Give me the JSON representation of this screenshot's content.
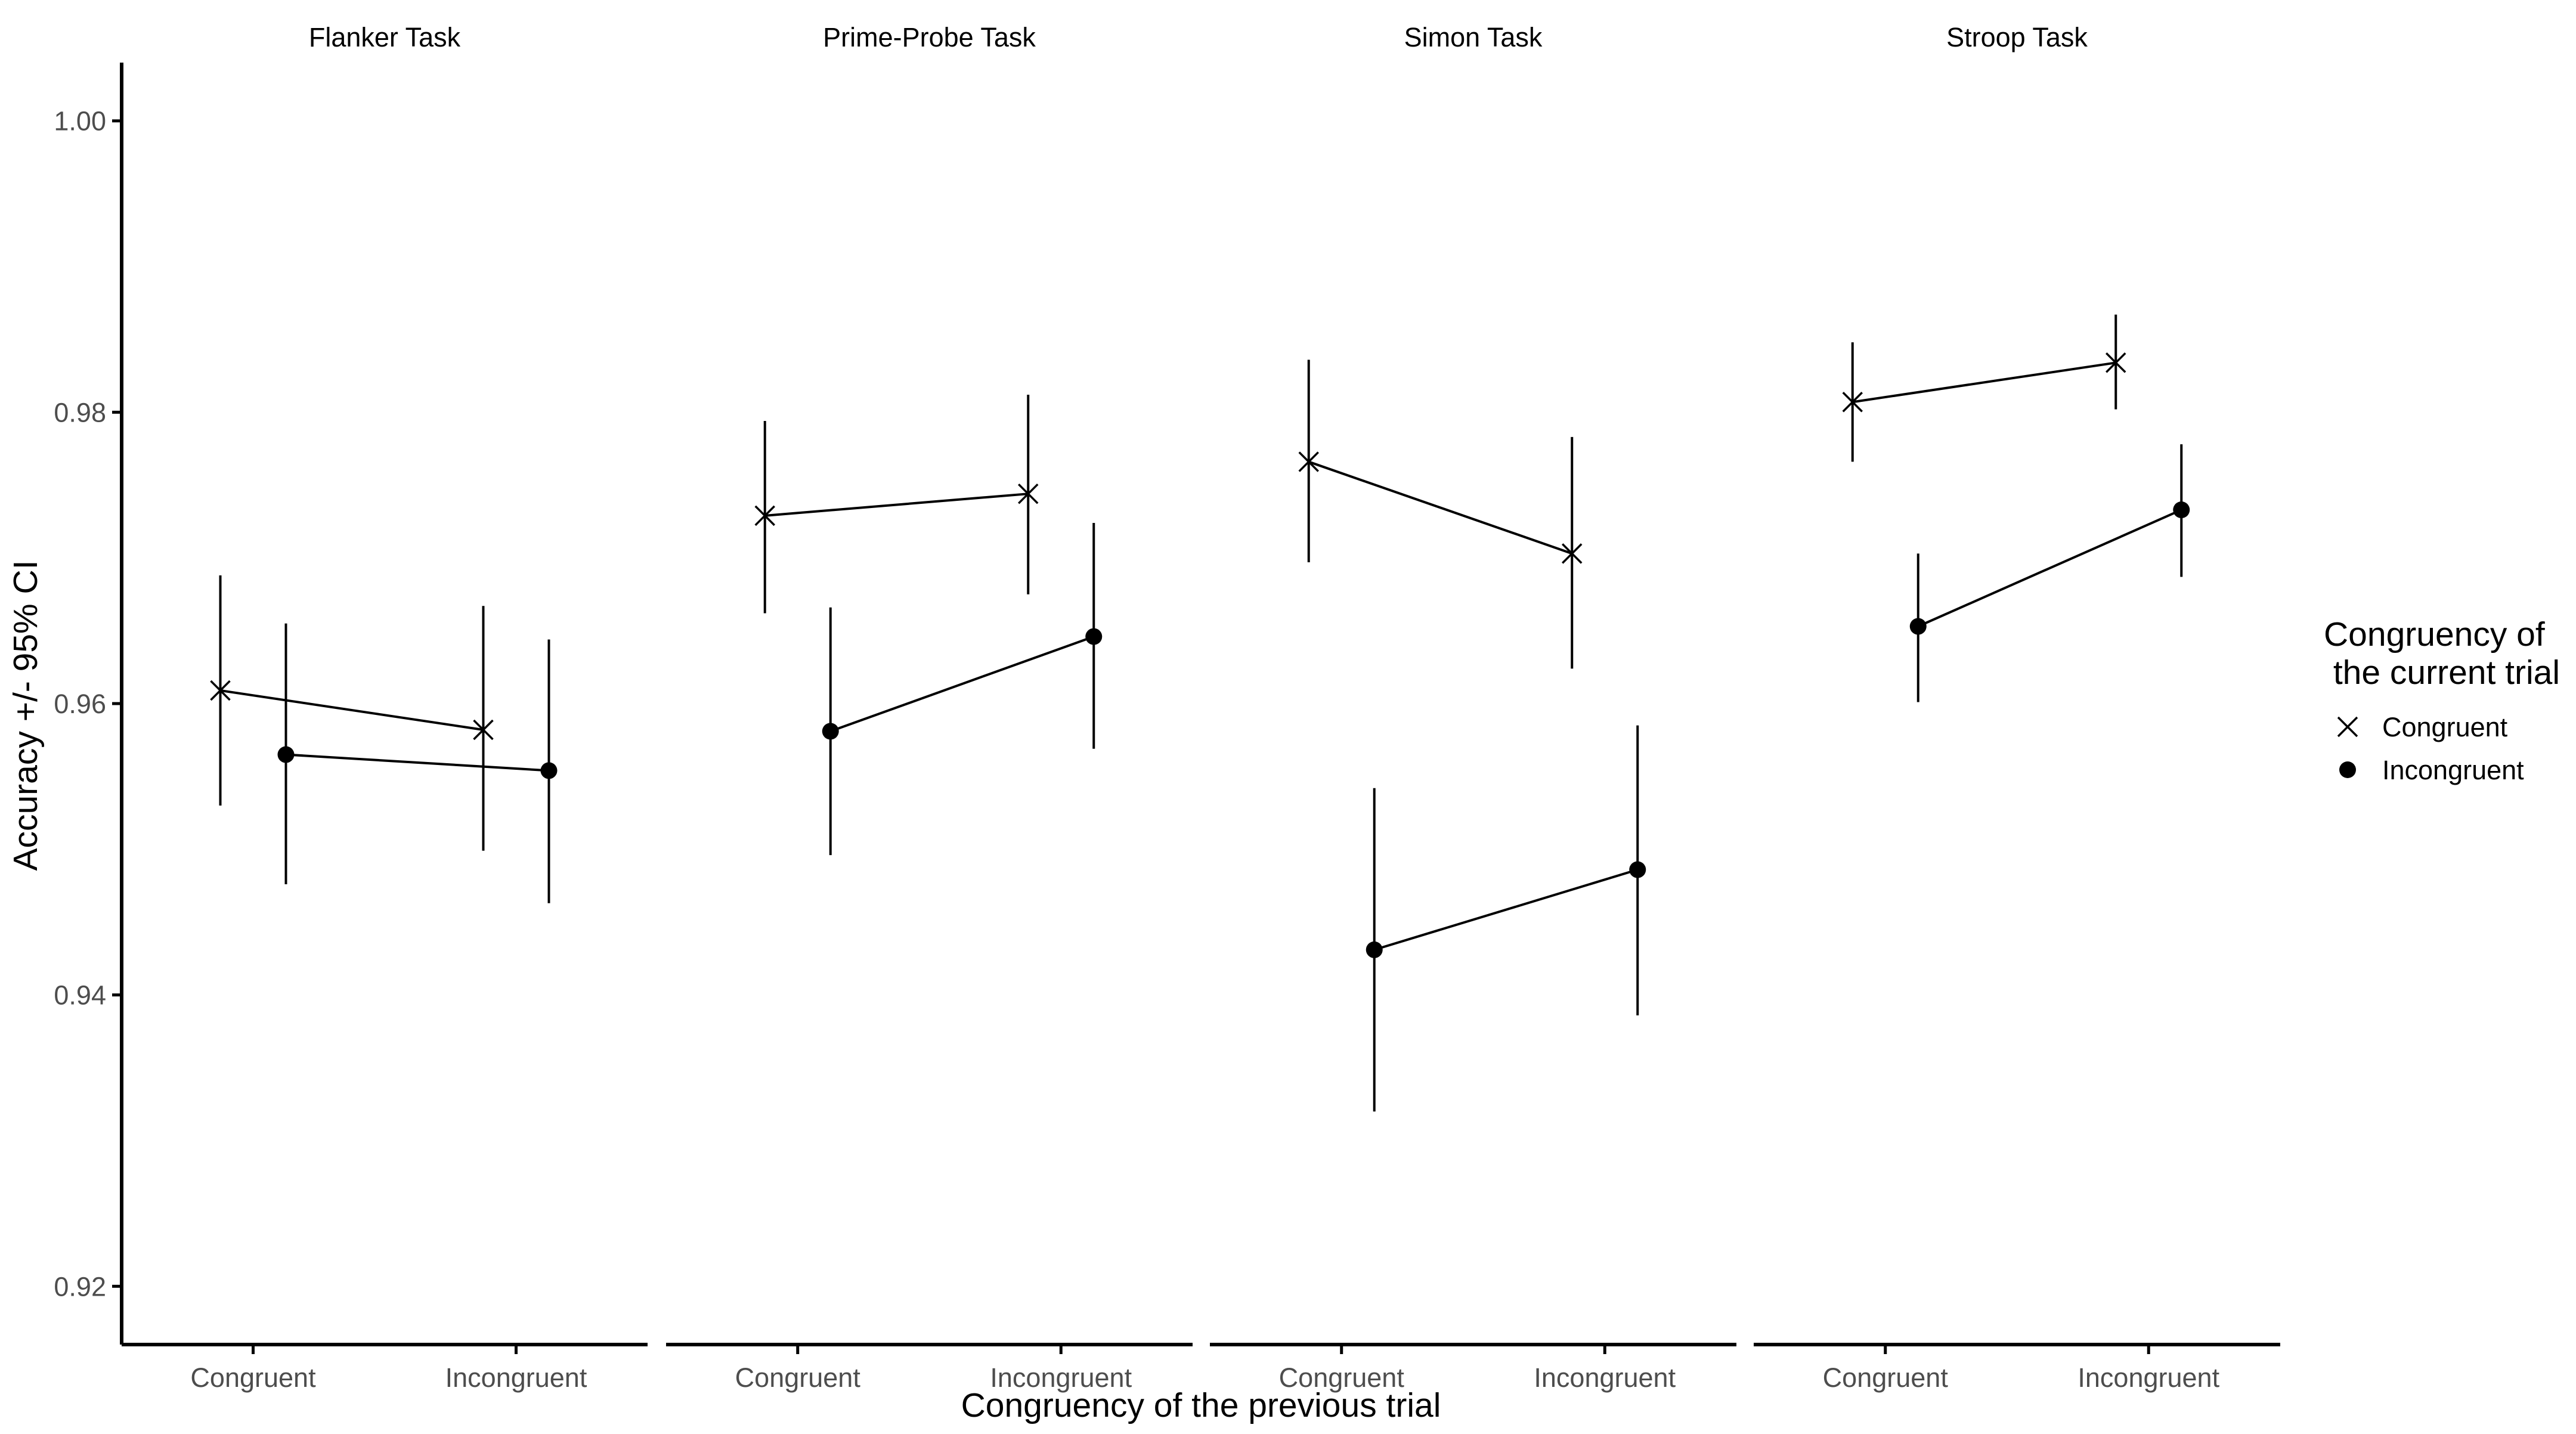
{
  "chart_data": {
    "type": "line",
    "facets": [
      "Flanker Task",
      "Prime-Probe Task",
      "Simon Task",
      "Stroop Task"
    ],
    "categories": [
      "Congruent",
      "Incongruent"
    ],
    "xlabel": "Congruency of the previous trial",
    "ylabel": "Accuracy +/- 95% CI",
    "ylim": [
      0.916,
      1.004
    ],
    "yticks": [
      0.92,
      0.94,
      0.96,
      0.98,
      1.0
    ],
    "ytick_labels": [
      "0.92",
      "0.94",
      "0.96",
      "0.98",
      "1.00"
    ],
    "grid": false,
    "legend": {
      "title_line1": "Congruency of",
      "title_line2": " the current trial",
      "placement": "right",
      "entries": [
        {
          "name": "Congruent",
          "marker": "x"
        },
        {
          "name": "Incongruent",
          "marker": "circle"
        }
      ]
    },
    "series": [
      {
        "name": "Congruent",
        "marker": "x",
        "panels": [
          {
            "facet": "Flanker Task",
            "values": [
              0.9609,
              0.9582
            ],
            "ci_low": [
              0.953,
              0.9499
            ],
            "ci_high": [
              0.9688,
              0.9667
            ]
          },
          {
            "facet": "Prime-Probe Task",
            "values": [
              0.9729,
              0.9744
            ],
            "ci_low": [
              0.9662,
              0.9675
            ],
            "ci_high": [
              0.9794,
              0.9812
            ]
          },
          {
            "facet": "Simon Task",
            "values": [
              0.9766,
              0.9703
            ],
            "ci_low": [
              0.9697,
              0.9624
            ],
            "ci_high": [
              0.9836,
              0.9783
            ]
          },
          {
            "facet": "Stroop Task",
            "values": [
              0.9807,
              0.9834
            ],
            "ci_low": [
              0.9766,
              0.9802
            ],
            "ci_high": [
              0.9848,
              0.9867
            ]
          }
        ]
      },
      {
        "name": "Incongruent",
        "marker": "circle",
        "panels": [
          {
            "facet": "Flanker Task",
            "values": [
              0.9565,
              0.9554
            ],
            "ci_low": [
              0.9476,
              0.9463
            ],
            "ci_high": [
              0.9655,
              0.9644
            ]
          },
          {
            "facet": "Prime-Probe Task",
            "values": [
              0.9581,
              0.9646
            ],
            "ci_low": [
              0.9496,
              0.9569
            ],
            "ci_high": [
              0.9666,
              0.9724
            ]
          },
          {
            "facet": "Simon Task",
            "values": [
              0.9431,
              0.9486
            ],
            "ci_low": [
              0.932,
              0.9386
            ],
            "ci_high": [
              0.9542,
              0.9585
            ]
          },
          {
            "facet": "Stroop Task",
            "values": [
              0.9653,
              0.9733
            ],
            "ci_low": [
              0.9601,
              0.9687
            ],
            "ci_high": [
              0.9703,
              0.9778
            ]
          }
        ]
      }
    ]
  }
}
